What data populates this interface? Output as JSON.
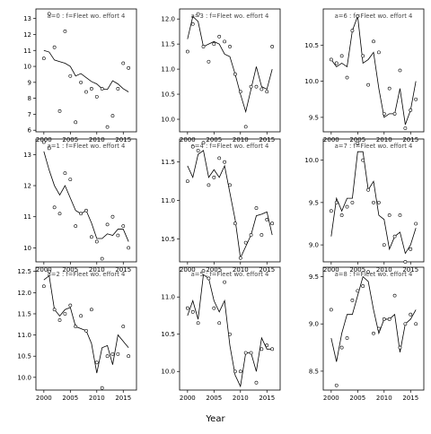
{
  "chart_data": {
    "type": "line",
    "xlabel": "Year",
    "ylabel": "",
    "panels": [
      {
        "title": "a=0  :  f=Fleet wo. effort 4",
        "x": [
          2000,
          2001,
          2002,
          2003,
          2004,
          2005,
          2006,
          2007,
          2008,
          2009,
          2010,
          2011,
          2012,
          2013,
          2014,
          2015,
          2016
        ],
        "fitted": [
          11.0,
          10.9,
          10.4,
          10.3,
          10.2,
          10.0,
          9.4,
          9.55,
          9.3,
          9.05,
          8.9,
          8.6,
          8.55,
          9.1,
          8.9,
          8.6,
          8.4
        ],
        "observed": [
          10.5,
          13.3,
          11.2,
          7.2,
          12.2,
          9.4,
          6.5,
          9.0,
          8.4,
          8.6,
          8.1,
          8.6,
          6.2,
          6.9,
          8.6,
          10.2,
          9.9
        ],
        "xlim": [
          1998.5,
          2017.5
        ],
        "ylim": [
          5.9,
          13.6
        ],
        "yticks": [
          6,
          7,
          8,
          9,
          10,
          11,
          12,
          13
        ]
      },
      {
        "title": "a=3  :  f=Fleet wo. effort 4",
        "x": [
          2000,
          2001,
          2002,
          2003,
          2004,
          2005,
          2006,
          2007,
          2008,
          2009,
          2010,
          2011,
          2012,
          2013,
          2014,
          2015,
          2016
        ],
        "fitted": [
          11.6,
          12.05,
          11.95,
          11.45,
          11.5,
          11.55,
          11.5,
          11.3,
          11.25,
          10.9,
          10.5,
          10.15,
          10.6,
          11.05,
          10.65,
          10.6,
          11.0
        ],
        "observed": [
          11.35,
          11.9,
          12.1,
          11.45,
          11.15,
          11.5,
          11.65,
          11.55,
          11.45,
          10.9,
          10.55,
          9.85,
          10.65,
          10.65,
          10.6,
          10.55,
          11.45
        ],
        "xlim": [
          1998.5,
          2017.5
        ],
        "ylim": [
          9.75,
          12.2
        ],
        "yticks": [
          10.0,
          10.5,
          11.0,
          11.5,
          12.0
        ]
      },
      {
        "title": "a=6  :  f=Fleet wo. effort 4",
        "x": [
          2000,
          2001,
          2002,
          2003,
          2004,
          2005,
          2006,
          2007,
          2008,
          2009,
          2010,
          2011,
          2012,
          2013,
          2014,
          2015,
          2016
        ],
        "fitted": [
          10.3,
          10.2,
          10.25,
          10.2,
          10.7,
          10.9,
          10.25,
          10.3,
          10.4,
          9.9,
          9.5,
          9.55,
          9.55,
          9.9,
          9.4,
          9.6,
          10.0
        ],
        "observed": [
          10.3,
          10.25,
          10.35,
          10.05,
          10.7,
          10.9,
          10.35,
          9.95,
          10.55,
          10.4,
          9.55,
          9.9,
          9.55,
          10.15,
          9.35,
          9.6,
          9.75
        ],
        "xlim": [
          1998.5,
          2017.5
        ],
        "ylim": [
          9.3,
          11.0
        ],
        "yticks": [
          9.5,
          10.0,
          10.5
        ]
      },
      {
        "title": "a=1  :  f=Fleet wo. effort 4",
        "x": [
          2000,
          2001,
          2002,
          2003,
          2004,
          2005,
          2006,
          2007,
          2008,
          2009,
          2010,
          2011,
          2012,
          2013,
          2014,
          2015,
          2016
        ],
        "fitted": [
          13.1,
          12.5,
          12.0,
          11.7,
          12.0,
          11.6,
          11.2,
          11.1,
          11.2,
          10.8,
          10.3,
          10.3,
          10.45,
          10.4,
          10.6,
          10.6,
          10.2
        ],
        "observed": [
          13.4,
          13.2,
          11.3,
          11.1,
          12.4,
          12.2,
          10.7,
          11.1,
          11.2,
          10.35,
          10.2,
          9.65,
          10.75,
          11.0,
          10.4,
          10.7,
          10.0
        ],
        "xlim": [
          1998.5,
          2017.5
        ],
        "ylim": [
          9.55,
          13.5
        ],
        "yticks": [
          10,
          11,
          12,
          13
        ]
      },
      {
        "title": "a=4  :  f=Fleet wo. effort 4",
        "x": [
          2000,
          2001,
          2002,
          2003,
          2004,
          2005,
          2006,
          2007,
          2008,
          2009,
          2010,
          2011,
          2012,
          2013,
          2014,
          2015,
          2016
        ],
        "fitted": [
          11.45,
          11.3,
          11.6,
          11.65,
          11.3,
          11.4,
          11.3,
          11.45,
          11.1,
          10.75,
          10.25,
          10.4,
          10.55,
          10.8,
          10.82,
          10.85,
          10.55
        ],
        "observed": [
          11.25,
          11.7,
          11.65,
          11.75,
          11.2,
          11.3,
          11.55,
          11.5,
          11.2,
          10.7,
          10.25,
          10.45,
          10.55,
          10.9,
          10.55,
          10.75,
          10.7
        ],
        "xlim": [
          1998.5,
          2017.5
        ],
        "ylim": [
          10.2,
          11.8
        ],
        "yticks": [
          10.5,
          11.0,
          11.5
        ]
      },
      {
        "title": "a=7  :  f=Fleet wo. effort 4",
        "x": [
          2000,
          2001,
          2002,
          2003,
          2004,
          2005,
          2006,
          2007,
          2008,
          2009,
          2010,
          2011,
          2012,
          2013,
          2014,
          2015,
          2016
        ],
        "fitted": [
          9.1,
          9.55,
          9.4,
          9.55,
          9.55,
          10.1,
          10.1,
          9.65,
          9.75,
          9.35,
          9.3,
          8.95,
          9.1,
          9.15,
          8.9,
          9.0,
          9.2
        ],
        "observed": [
          9.4,
          9.5,
          9.35,
          9.45,
          9.5,
          10.2,
          10.0,
          9.65,
          9.5,
          9.5,
          9.0,
          9.35,
          9.1,
          9.35,
          8.8,
          8.95,
          9.25
        ],
        "xlim": [
          1998.5,
          2017.5
        ],
        "ylim": [
          8.8,
          10.25
        ],
        "yticks": [
          9.0,
          9.5,
          10.0
        ]
      },
      {
        "title": "a=2  :  f=Fleet wo. effort 4",
        "x": [
          2000,
          2001,
          2002,
          2003,
          2004,
          2005,
          2006,
          2007,
          2008,
          2009,
          2010,
          2011,
          2012,
          2013,
          2014,
          2015,
          2016
        ],
        "fitted": [
          12.3,
          12.4,
          11.6,
          11.45,
          11.6,
          11.65,
          11.2,
          11.15,
          11.1,
          10.8,
          10.1,
          10.7,
          10.75,
          10.3,
          11.0,
          10.85,
          10.7
        ],
        "observed": [
          12.15,
          12.5,
          11.6,
          11.35,
          11.5,
          11.7,
          11.2,
          11.45,
          11.1,
          11.6,
          10.35,
          9.75,
          10.5,
          10.55,
          10.55,
          11.2,
          10.5
        ],
        "xlim": [
          1998.5,
          2017.5
        ],
        "ylim": [
          9.7,
          12.6
        ],
        "yticks": [
          10.0,
          10.5,
          11.0,
          11.5,
          12.0,
          12.5
        ]
      },
      {
        "title": "a=5  :  f=Fleet wo. effort 4",
        "x": [
          2000,
          2001,
          2002,
          2003,
          2004,
          2005,
          2006,
          2007,
          2008,
          2009,
          2010,
          2011,
          2012,
          2013,
          2014,
          2015,
          2016
        ],
        "fitted": [
          10.75,
          10.95,
          10.7,
          11.3,
          11.25,
          10.95,
          10.8,
          10.95,
          10.35,
          9.95,
          9.8,
          10.25,
          10.25,
          10.0,
          10.45,
          10.3,
          10.3
        ],
        "observed": [
          10.85,
          10.8,
          10.65,
          11.35,
          11.25,
          10.85,
          10.65,
          11.2,
          10.5,
          10.0,
          10.0,
          10.25,
          10.25,
          9.85,
          10.3,
          10.35,
          10.3
        ],
        "xlim": [
          1998.5,
          2017.5
        ],
        "ylim": [
          9.75,
          11.4
        ],
        "yticks": [
          10.0,
          10.5,
          11.0
        ]
      },
      {
        "title": "a=8  :  f=Fleet wo. effort 4",
        "x": [
          2000,
          2001,
          2002,
          2003,
          2004,
          2005,
          2006,
          2007,
          2008,
          2009,
          2010,
          2011,
          2012,
          2013,
          2014,
          2015,
          2016
        ],
        "fitted": [
          8.85,
          8.6,
          8.9,
          9.1,
          9.1,
          9.3,
          9.5,
          9.45,
          9.15,
          8.9,
          9.05,
          9.05,
          9.1,
          8.7,
          9.0,
          9.05,
          9.15
        ],
        "observed": [
          9.15,
          8.35,
          8.75,
          8.85,
          9.25,
          9.35,
          9.4,
          9.55,
          8.9,
          8.95,
          9.05,
          9.05,
          9.3,
          8.75,
          9.0,
          9.1,
          9.0
        ],
        "xlim": [
          1998.5,
          2017.5
        ],
        "ylim": [
          8.3,
          9.6
        ],
        "yticks": [
          8.5,
          9.0,
          9.5
        ]
      }
    ],
    "xticks": [
      2000,
      2005,
      2010,
      2015
    ],
    "grid": false,
    "legend": "none"
  }
}
